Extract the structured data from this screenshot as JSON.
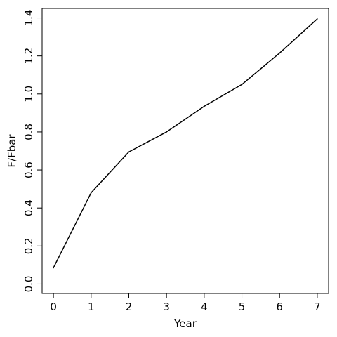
{
  "chart_data": {
    "type": "line",
    "title": "",
    "xlabel": "Year",
    "ylabel": "F/Fbar",
    "x": [
      0,
      1,
      2,
      3,
      4,
      5,
      6,
      7
    ],
    "series": [
      {
        "values": [
          0.085,
          0.48,
          0.695,
          0.8,
          0.935,
          1.05,
          1.215,
          1.395
        ]
      }
    ],
    "xlim": [
      -0.3,
      7.3
    ],
    "ylim": [
      -0.05,
      1.45
    ],
    "xticks": [
      0,
      1,
      2,
      3,
      4,
      5,
      6,
      7
    ],
    "xtick_labels": [
      "0",
      "1",
      "2",
      "3",
      "4",
      "5",
      "6",
      "7"
    ],
    "yticks": [
      0.0,
      0.2,
      0.4,
      0.6,
      0.8,
      1.0,
      1.2,
      1.4
    ],
    "ytick_labels": [
      "0.0",
      "0.2",
      "0.4",
      "0.6",
      "0.8",
      "1.0",
      "1.2",
      "1.4"
    ],
    "grid": false,
    "legend": "none",
    "line_color": "#000000",
    "frame_color": "#000000"
  }
}
